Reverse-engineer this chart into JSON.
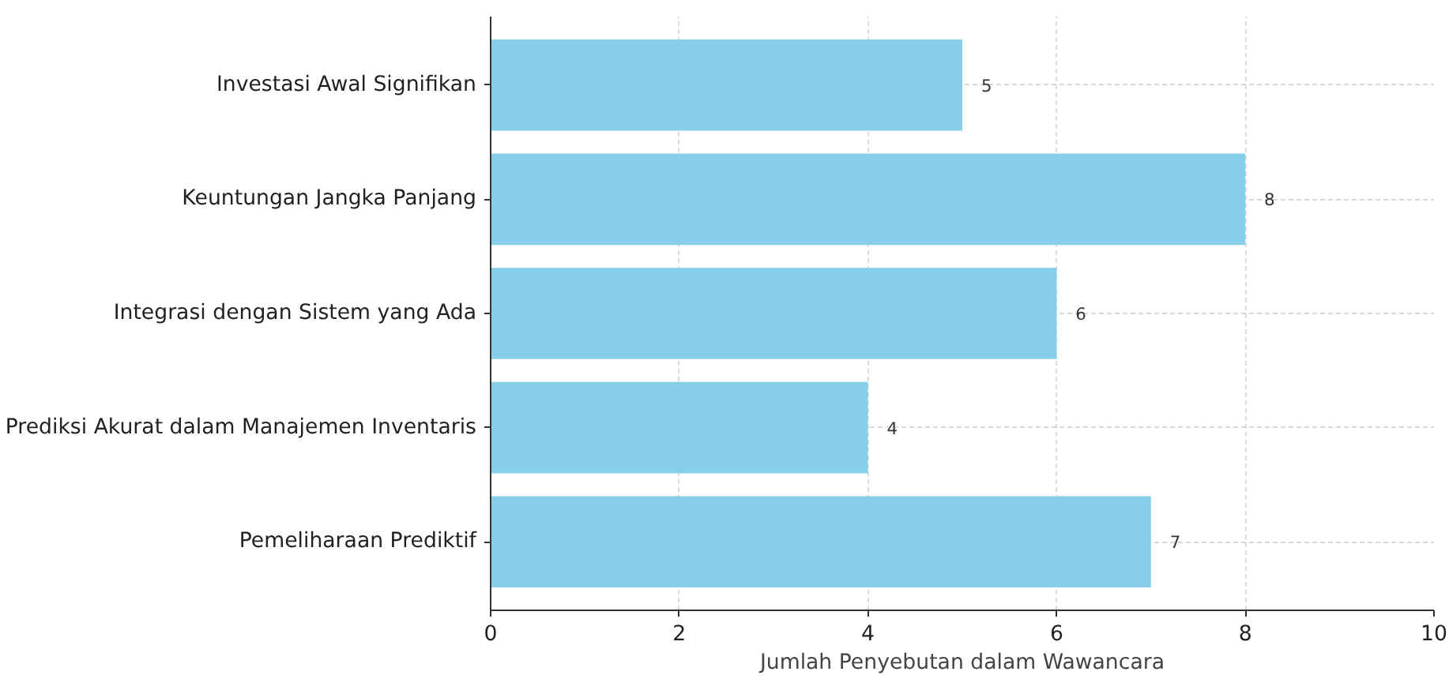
{
  "chart_data": {
    "type": "bar",
    "orientation": "horizontal",
    "categories": [
      "Investasi Awal Signifikan",
      "Keuntungan Jangka Panjang",
      "Integrasi dengan Sistem yang Ada",
      "Prediksi Akurat dalam Manajemen Inventaris",
      "Pemeliharaan Prediktif"
    ],
    "values": [
      5,
      8,
      6,
      4,
      7
    ],
    "color": "#87ceeb",
    "xlabel": "Jumlah Penyebutan dalam Wawancara",
    "xlim": [
      0,
      10
    ],
    "xticks": [
      0,
      2,
      4,
      6,
      8,
      10
    ],
    "grid": true,
    "data_labels": true
  }
}
